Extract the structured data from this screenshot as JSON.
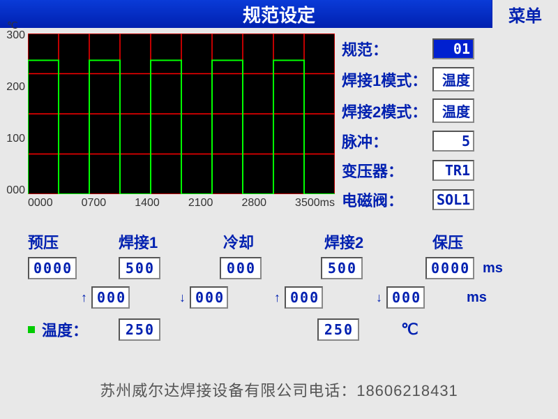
{
  "header": {
    "title": "规范设定",
    "menu": "菜单"
  },
  "chart": {
    "y_unit": "℃",
    "y_ticks": [
      "300",
      "200",
      "100",
      "000"
    ],
    "x_ticks": [
      "0000",
      "0700",
      "1400",
      "2100",
      "2800",
      "3500ms"
    ],
    "bg": "#000000",
    "grid_color": "#ff0000",
    "waveform_color": "#00ff00",
    "xlim": [
      0,
      3500
    ],
    "ylim": [
      0,
      300
    ],
    "grid_x_step": 350,
    "grid_y_step": 75,
    "waveform": {
      "high": 250,
      "low": 0,
      "period": 700,
      "pulses": 5,
      "start": 0
    }
  },
  "params": {
    "spec": {
      "label": "规范：",
      "value": "01",
      "selected": true
    },
    "weld1_mode": {
      "label": "焊接1模式：",
      "value": "温度"
    },
    "weld2_mode": {
      "label": "焊接2模式：",
      "value": "温度"
    },
    "pulse": {
      "label": "脉冲：",
      "value": "5"
    },
    "transformer": {
      "label": "变压器：",
      "value": "TR1"
    },
    "solenoid": {
      "label": "电磁阀：",
      "value": "SOL1"
    }
  },
  "phases": {
    "labels": {
      "prepress": "预压",
      "weld1": "焊接1",
      "cool": "冷却",
      "weld2": "焊接2",
      "hold": "保压"
    },
    "values": {
      "prepress": "0000",
      "weld1": "500",
      "cool": "000",
      "weld2": "500",
      "hold": "0000"
    },
    "ramps": {
      "up1": "000",
      "down1": "000",
      "up2": "000",
      "down2": "000"
    },
    "unit_ms": "ms"
  },
  "temperature": {
    "label": "温度：",
    "val1": "250",
    "val2": "250",
    "unit": "℃"
  },
  "footer": "苏州威尔达焊接设备有限公司电话：18606218431"
}
